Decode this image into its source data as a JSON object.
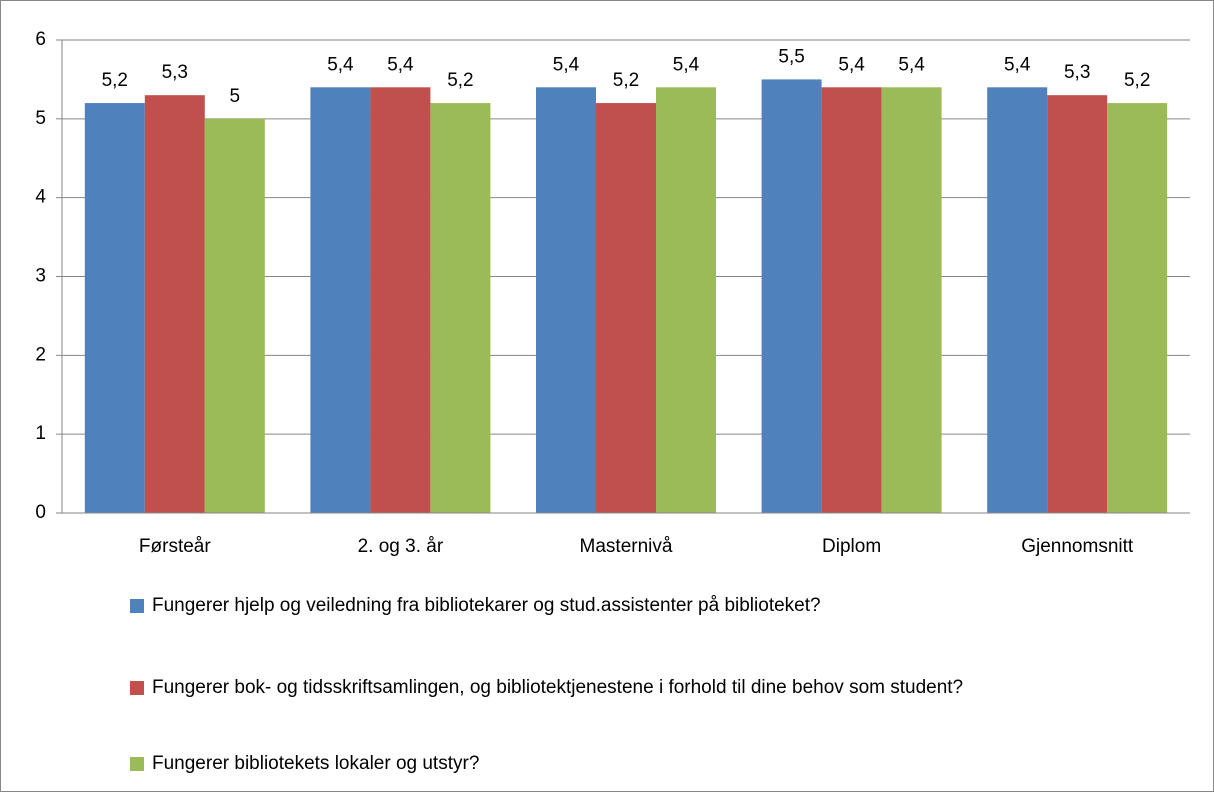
{
  "chart_data": {
    "type": "bar",
    "categories": [
      "Førsteår",
      "2. og 3. år",
      "Masternivå",
      "Diplom",
      "Gjennomsnitt"
    ],
    "series": [
      {
        "name": "Fungerer hjelp og veiledning fra bibliotekarer og stud.assistenter på biblioteket?",
        "color": "#4f81bd",
        "values": [
          5.2,
          5.4,
          5.4,
          5.5,
          5.4
        ],
        "value_labels": [
          "5,2",
          "5,4",
          "5,4",
          "5,5",
          "5,4"
        ]
      },
      {
        "name": "Fungerer bok- og tidsskriftsamlingen, og bibliotektjenestene i forhold til dine behov som student?",
        "color": "#c0504d",
        "values": [
          5.3,
          5.4,
          5.2,
          5.4,
          5.3
        ],
        "value_labels": [
          "5,3",
          "5,4",
          "5,2",
          "5,4",
          "5,3"
        ]
      },
      {
        "name": "Fungerer bibliotekets lokaler og utstyr?",
        "color": "#9bbb59",
        "values": [
          5,
          5.2,
          5.4,
          5.4,
          5.2
        ],
        "value_labels": [
          "5",
          "5,2",
          "5,4",
          "5,4",
          "5,2"
        ]
      }
    ],
    "ylim": [
      0,
      6
    ],
    "yticks": [
      0,
      1,
      2,
      3,
      4,
      5,
      6
    ],
    "grid": true,
    "legend": "bottom"
  }
}
